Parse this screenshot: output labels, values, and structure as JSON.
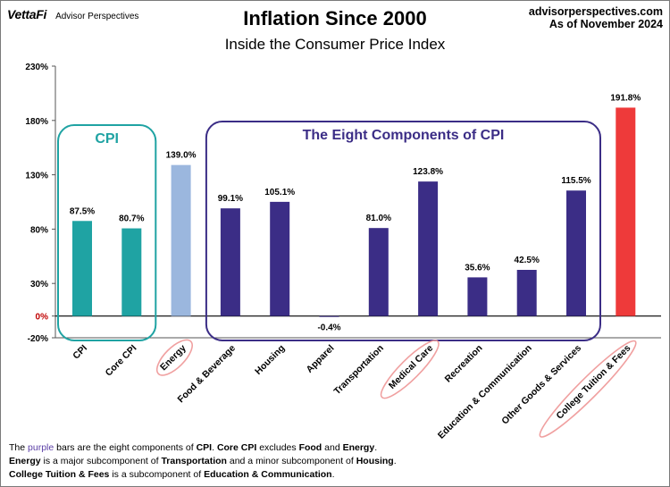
{
  "header": {
    "brand_logo": "VettaFi",
    "brand_sub": "Advisor Perspectives",
    "site": "advisorperspectives.com",
    "asof": "As of November 2024"
  },
  "chart_data": {
    "type": "bar",
    "title": "Inflation Since 2000",
    "subtitle": "Inside the Consumer Price Index",
    "xlabel": "",
    "ylabel": "",
    "ylim": [
      -20,
      230
    ],
    "yticks": [
      "230%",
      "180%",
      "130%",
      "80%",
      "30%",
      "0%",
      "-20%"
    ],
    "ytick_values": [
      230,
      180,
      130,
      80,
      30,
      0,
      -20
    ],
    "categories": [
      "CPI",
      "Core CPI",
      "Energy",
      "Food & Beverage",
      "Housing",
      "Apparel",
      "Transportation",
      "Medical Care",
      "Recreation",
      "Education & Communication",
      "Other Goods & Services",
      "College Tuition & Fees"
    ],
    "values": [
      87.5,
      80.7,
      139.0,
      99.1,
      105.1,
      -0.4,
      81.0,
      123.8,
      35.6,
      42.5,
      115.5,
      191.8
    ],
    "value_labels": [
      "87.5%",
      "80.7%",
      "139.0%",
      "99.1%",
      "105.1%",
      "-0.4%",
      "81.0%",
      "123.8%",
      "35.6%",
      "42.5%",
      "115.5%",
      "191.8%"
    ],
    "bar_colors": [
      "#1fa3a3",
      "#1fa3a3",
      "#9bb7de",
      "#3b2d86",
      "#3b2d86",
      "#3b2d86",
      "#3b2d86",
      "#3b2d86",
      "#3b2d86",
      "#3b2d86",
      "#3b2d86",
      "#ee3a3a"
    ],
    "circled_categories": [
      "Energy",
      "Medical Care",
      "College Tuition & Fees"
    ],
    "groups": [
      {
        "label": "CPI",
        "color": "#1fa3a3",
        "members": [
          "CPI",
          "Core CPI"
        ]
      },
      {
        "label": "The Eight Components of CPI",
        "color": "#3b2d86",
        "members": [
          "Food & Beverage",
          "Housing",
          "Apparel",
          "Transportation",
          "Medical Care",
          "Recreation",
          "Education & Communication",
          "Other Goods & Services"
        ]
      }
    ],
    "zero_tick_color": "#c00000",
    "grid": false
  },
  "footnote": {
    "l1_a": "The ",
    "l1_purple": "purple",
    "l1_b": " bars are the eight components of ",
    "l1_c": "CPI",
    "l1_d": ". ",
    "l1_e": "Core CPI",
    "l1_f": " excludes ",
    "l1_g": "Food",
    "l1_h": " and ",
    "l1_i": "Energy",
    "l1_j": ".",
    "l2_a": "Energy",
    "l2_b": " is a major subcomponent of ",
    "l2_c": "Transportation",
    "l2_d": " and a minor subcomponent of ",
    "l2_e": "Housing",
    "l2_f": ".",
    "l3_a": "College Tuition & Fees",
    "l3_b": " is a subcomponent of ",
    "l3_c": "Education & Communication",
    "l3_d": "."
  }
}
